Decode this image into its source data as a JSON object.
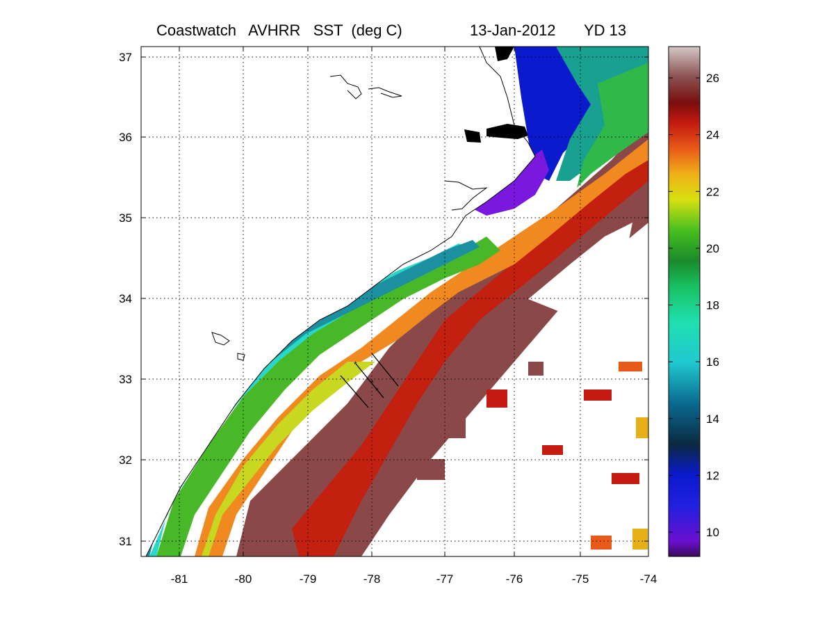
{
  "figure": {
    "title_left": "Coastwatch   AVHRR   SST  (deg C)",
    "title_date": "13-Jan-2012",
    "title_yd": "YD 13"
  },
  "map": {
    "lon_ticks": [
      "-81",
      "-80",
      "-79",
      "-78",
      "-77",
      "-76",
      "-75",
      "-74"
    ],
    "lat_ticks": [
      "37",
      "36",
      "35",
      "34",
      "33",
      "32",
      "31"
    ],
    "grid": true
  },
  "colorbar": {
    "ticks": [
      "26",
      "24",
      "22",
      "20",
      "18",
      "16",
      "14",
      "12",
      "10"
    ],
    "colors": [
      "#d2c6c4",
      "#8a4b4b",
      "#7a0e0e",
      "#c41a10",
      "#f07a18",
      "#e8e010",
      "#2aa822",
      "#10c070",
      "#20e0d8",
      "#0a5a82",
      "#0a1acc",
      "#6a10d0",
      "#3a0a5a"
    ]
  }
}
